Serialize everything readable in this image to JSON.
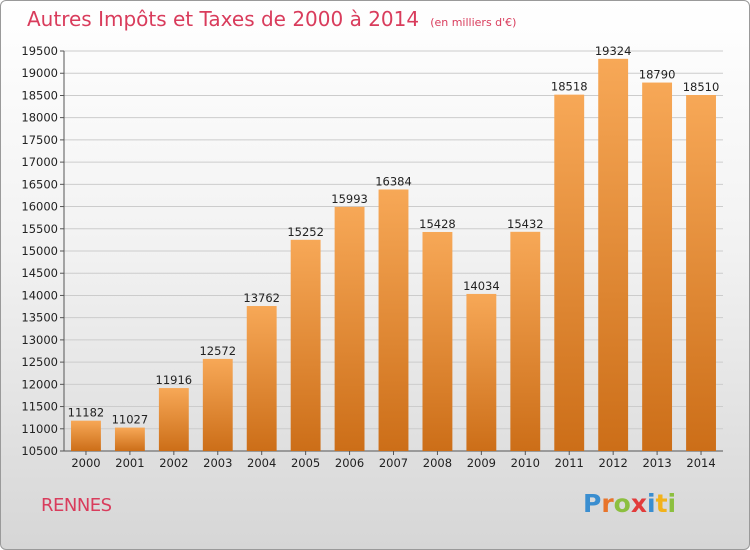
{
  "header": {
    "title": "Autres Impôts et Taxes de 2000 à 2014",
    "unit": "(en milliers d'€)"
  },
  "footer": {
    "city": "RENNES",
    "logo_letters": [
      "P",
      "r",
      "o",
      "x",
      "i",
      "t",
      "i"
    ],
    "logo_colors": [
      "#3a8ed0",
      "#e8742a",
      "#8cbf3f",
      "#e23b3b",
      "#3a8ed0",
      "#f2b21a",
      "#8cbf3f"
    ]
  },
  "colors": {
    "bar_light": "#f7a857",
    "bar_dark": "#cc6e18",
    "title": "#d93c5c",
    "grid": "#cccccc"
  },
  "chart_data": {
    "type": "bar",
    "title": "Autres Impôts et Taxes de 2000 à 2014",
    "subtitle": "(en milliers d'€)",
    "categories": [
      "2000",
      "2001",
      "2002",
      "2003",
      "2004",
      "2005",
      "2006",
      "2007",
      "2008",
      "2009",
      "2010",
      "2011",
      "2012",
      "2013",
      "2014"
    ],
    "values": [
      11182,
      11027,
      11916,
      12572,
      13762,
      15252,
      15993,
      16384,
      15428,
      14034,
      15432,
      18518,
      19324,
      18790,
      18510
    ],
    "ylim": [
      10500,
      19500
    ],
    "yticks": [
      "10500",
      "11000",
      "11500",
      "12000",
      "12500",
      "13000",
      "13500",
      "14000",
      "14500",
      "15000",
      "15500",
      "16000",
      "16500",
      "17000",
      "17500",
      "18000",
      "18500",
      "19000",
      "19500"
    ],
    "grid": true,
    "legend": "none",
    "xlabel": "",
    "ylabel": ""
  }
}
